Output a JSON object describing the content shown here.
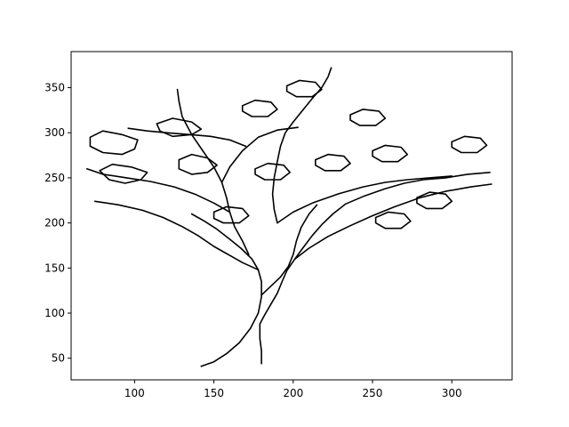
{
  "chart_data": {
    "type": "line",
    "title": "",
    "xlabel": "",
    "ylabel": "",
    "xlim": [
      60,
      338
    ],
    "ylim": [
      26,
      390
    ],
    "x_ticks": [
      100,
      150,
      200,
      250,
      300
    ],
    "y_ticks": [
      50,
      100,
      150,
      200,
      250,
      300,
      350
    ],
    "x_tick_labels": [
      "100",
      "150",
      "200",
      "250",
      "300"
    ],
    "y_tick_labels": [
      "50",
      "100",
      "150",
      "200",
      "250",
      "300",
      "350"
    ],
    "grid": false,
    "legend": "none",
    "line_color": "#000000",
    "series": [
      {
        "points": [
          [
            142,
            41
          ],
          [
            150,
            46
          ],
          [
            158,
            55
          ],
          [
            166,
            67
          ],
          [
            173,
            83
          ],
          [
            178,
            100
          ],
          [
            180,
            118
          ],
          [
            180,
            135
          ],
          [
            178,
            148
          ],
          [
            174,
            160
          ],
          [
            167,
            172
          ],
          [
            160,
            182
          ],
          [
            152,
            193
          ],
          [
            144,
            202
          ],
          [
            136,
            210
          ]
        ]
      },
      {
        "points": [
          [
            180,
            44
          ],
          [
            180,
            58
          ],
          [
            179,
            72
          ],
          [
            179,
            88
          ],
          [
            182,
            98
          ],
          [
            186,
            110
          ],
          [
            190,
            122
          ],
          [
            193,
            135
          ],
          [
            196,
            147
          ],
          [
            201,
            160
          ],
          [
            206,
            172
          ],
          [
            212,
            186
          ],
          [
            218,
            198
          ],
          [
            225,
            210
          ],
          [
            233,
            221
          ],
          [
            245,
            230
          ],
          [
            258,
            238
          ],
          [
            270,
            244
          ],
          [
            282,
            248
          ],
          [
            296,
            250
          ],
          [
            310,
            254
          ],
          [
            324,
            256
          ]
        ]
      },
      {
        "points": [
          [
            180,
            120
          ],
          [
            186,
            130
          ],
          [
            192,
            140
          ],
          [
            197,
            152
          ],
          [
            200,
            165
          ],
          [
            202,
            180
          ],
          [
            205,
            195
          ],
          [
            210,
            210
          ],
          [
            215,
            220
          ]
        ]
      },
      {
        "points": [
          [
            172,
            165
          ],
          [
            168,
            180
          ],
          [
            163,
            196
          ],
          [
            160,
            212
          ],
          [
            158,
            228
          ],
          [
            155,
            245
          ],
          [
            150,
            262
          ],
          [
            143,
            280
          ],
          [
            136,
            298
          ],
          [
            130,
            318
          ],
          [
            128,
            335
          ],
          [
            127,
            348
          ]
        ]
      },
      {
        "points": [
          [
            160,
            212
          ],
          [
            150,
            222
          ],
          [
            138,
            232
          ],
          [
            125,
            240
          ],
          [
            110,
            246
          ],
          [
            95,
            250
          ],
          [
            80,
            254
          ],
          [
            70,
            260
          ]
        ]
      },
      {
        "points": [
          [
            155,
            245
          ],
          [
            160,
            262
          ],
          [
            168,
            280
          ],
          [
            178,
            295
          ],
          [
            190,
            303
          ],
          [
            203,
            306
          ]
        ]
      },
      {
        "points": [
          [
            190,
            200
          ],
          [
            200,
            212
          ],
          [
            212,
            222
          ],
          [
            228,
            232
          ],
          [
            244,
            240
          ],
          [
            258,
            245
          ],
          [
            272,
            248
          ],
          [
            286,
            250
          ],
          [
            300,
            252
          ]
        ]
      },
      {
        "points": [
          [
            190,
            200
          ],
          [
            188,
            215
          ],
          [
            187,
            232
          ],
          [
            188,
            250
          ],
          [
            190,
            268
          ],
          [
            192,
            285
          ],
          [
            195,
            300
          ],
          [
            200,
            312
          ],
          [
            206,
            325
          ]
        ]
      },
      {
        "points": [
          [
            201,
            160
          ],
          [
            210,
            172
          ],
          [
            222,
            185
          ],
          [
            236,
            197
          ],
          [
            250,
            208
          ],
          [
            264,
            218
          ],
          [
            280,
            228
          ],
          [
            296,
            235
          ],
          [
            312,
            240
          ],
          [
            325,
            243
          ]
        ]
      },
      {
        "points": [
          [
            178,
            148
          ],
          [
            168,
            156
          ],
          [
            160,
            164
          ],
          [
            150,
            174
          ],
          [
            140,
            186
          ],
          [
            130,
            196
          ],
          [
            118,
            206
          ],
          [
            105,
            214
          ],
          [
            90,
            220
          ],
          [
            75,
            224
          ]
        ]
      },
      {
        "points": [
          [
            170,
            285
          ],
          [
            160,
            292
          ],
          [
            148,
            296
          ],
          [
            135,
            298
          ],
          [
            120,
            300
          ],
          [
            108,
            302
          ],
          [
            96,
            305
          ]
        ]
      },
      {
        "points": [
          [
            206,
            325
          ],
          [
            212,
            338
          ],
          [
            218,
            350
          ],
          [
            222,
            362
          ],
          [
            224,
            372
          ]
        ]
      },
      {
        "points": [
          [
            72,
            295
          ],
          [
            80,
            302
          ],
          [
            92,
            298
          ],
          [
            102,
            292
          ],
          [
            100,
            282
          ],
          [
            92,
            276
          ],
          [
            80,
            278
          ],
          [
            72,
            285
          ],
          [
            72,
            295
          ]
        ]
      },
      {
        "points": [
          [
            78,
            258
          ],
          [
            86,
            265
          ],
          [
            98,
            262
          ],
          [
            108,
            256
          ],
          [
            104,
            248
          ],
          [
            94,
            244
          ],
          [
            84,
            248
          ],
          [
            78,
            258
          ]
        ]
      },
      {
        "points": [
          [
            114,
            310
          ],
          [
            124,
            316
          ],
          [
            136,
            312
          ],
          [
            142,
            304
          ],
          [
            136,
            298
          ],
          [
            124,
            296
          ],
          [
            116,
            302
          ],
          [
            114,
            310
          ]
        ]
      },
      {
        "points": [
          [
            128,
            270
          ],
          [
            136,
            276
          ],
          [
            146,
            272
          ],
          [
            152,
            264
          ],
          [
            146,
            256
          ],
          [
            136,
            254
          ],
          [
            128,
            260
          ],
          [
            128,
            270
          ]
        ]
      },
      {
        "points": [
          [
            150,
            212
          ],
          [
            158,
            218
          ],
          [
            168,
            216
          ],
          [
            172,
            208
          ],
          [
            166,
            200
          ],
          [
            156,
            200
          ],
          [
            150,
            205
          ],
          [
            150,
            212
          ]
        ]
      },
      {
        "points": [
          [
            168,
            330
          ],
          [
            176,
            336
          ],
          [
            186,
            334
          ],
          [
            190,
            326
          ],
          [
            184,
            318
          ],
          [
            174,
            318
          ],
          [
            168,
            324
          ],
          [
            168,
            330
          ]
        ]
      },
      {
        "points": [
          [
            176,
            260
          ],
          [
            184,
            266
          ],
          [
            194,
            264
          ],
          [
            198,
            256
          ],
          [
            192,
            248
          ],
          [
            182,
            248
          ],
          [
            176,
            254
          ],
          [
            176,
            260
          ]
        ]
      },
      {
        "points": [
          [
            214,
            270
          ],
          [
            222,
            276
          ],
          [
            232,
            274
          ],
          [
            236,
            266
          ],
          [
            230,
            258
          ],
          [
            220,
            258
          ],
          [
            214,
            264
          ],
          [
            214,
            270
          ]
        ]
      },
      {
        "points": [
          [
            236,
            320
          ],
          [
            244,
            326
          ],
          [
            254,
            324
          ],
          [
            258,
            316
          ],
          [
            252,
            308
          ],
          [
            242,
            308
          ],
          [
            236,
            314
          ],
          [
            236,
            320
          ]
        ]
      },
      {
        "points": [
          [
            250,
            280
          ],
          [
            258,
            286
          ],
          [
            268,
            284
          ],
          [
            272,
            276
          ],
          [
            266,
            268
          ],
          [
            256,
            268
          ],
          [
            250,
            274
          ],
          [
            250,
            280
          ]
        ]
      },
      {
        "points": [
          [
            278,
            228
          ],
          [
            286,
            234
          ],
          [
            296,
            232
          ],
          [
            300,
            224
          ],
          [
            294,
            216
          ],
          [
            284,
            216
          ],
          [
            278,
            222
          ],
          [
            278,
            228
          ]
        ]
      },
      {
        "points": [
          [
            300,
            290
          ],
          [
            308,
            296
          ],
          [
            318,
            294
          ],
          [
            322,
            286
          ],
          [
            316,
            278
          ],
          [
            306,
            278
          ],
          [
            300,
            284
          ],
          [
            300,
            290
          ]
        ]
      },
      {
        "points": [
          [
            196,
            352
          ],
          [
            204,
            358
          ],
          [
            214,
            356
          ],
          [
            218,
            348
          ],
          [
            212,
            340
          ],
          [
            202,
            340
          ],
          [
            196,
            346
          ],
          [
            196,
            352
          ]
        ]
      },
      {
        "points": [
          [
            252,
            206
          ],
          [
            260,
            212
          ],
          [
            270,
            210
          ],
          [
            274,
            202
          ],
          [
            268,
            194
          ],
          [
            258,
            194
          ],
          [
            252,
            200
          ],
          [
            252,
            206
          ]
        ]
      }
    ]
  }
}
